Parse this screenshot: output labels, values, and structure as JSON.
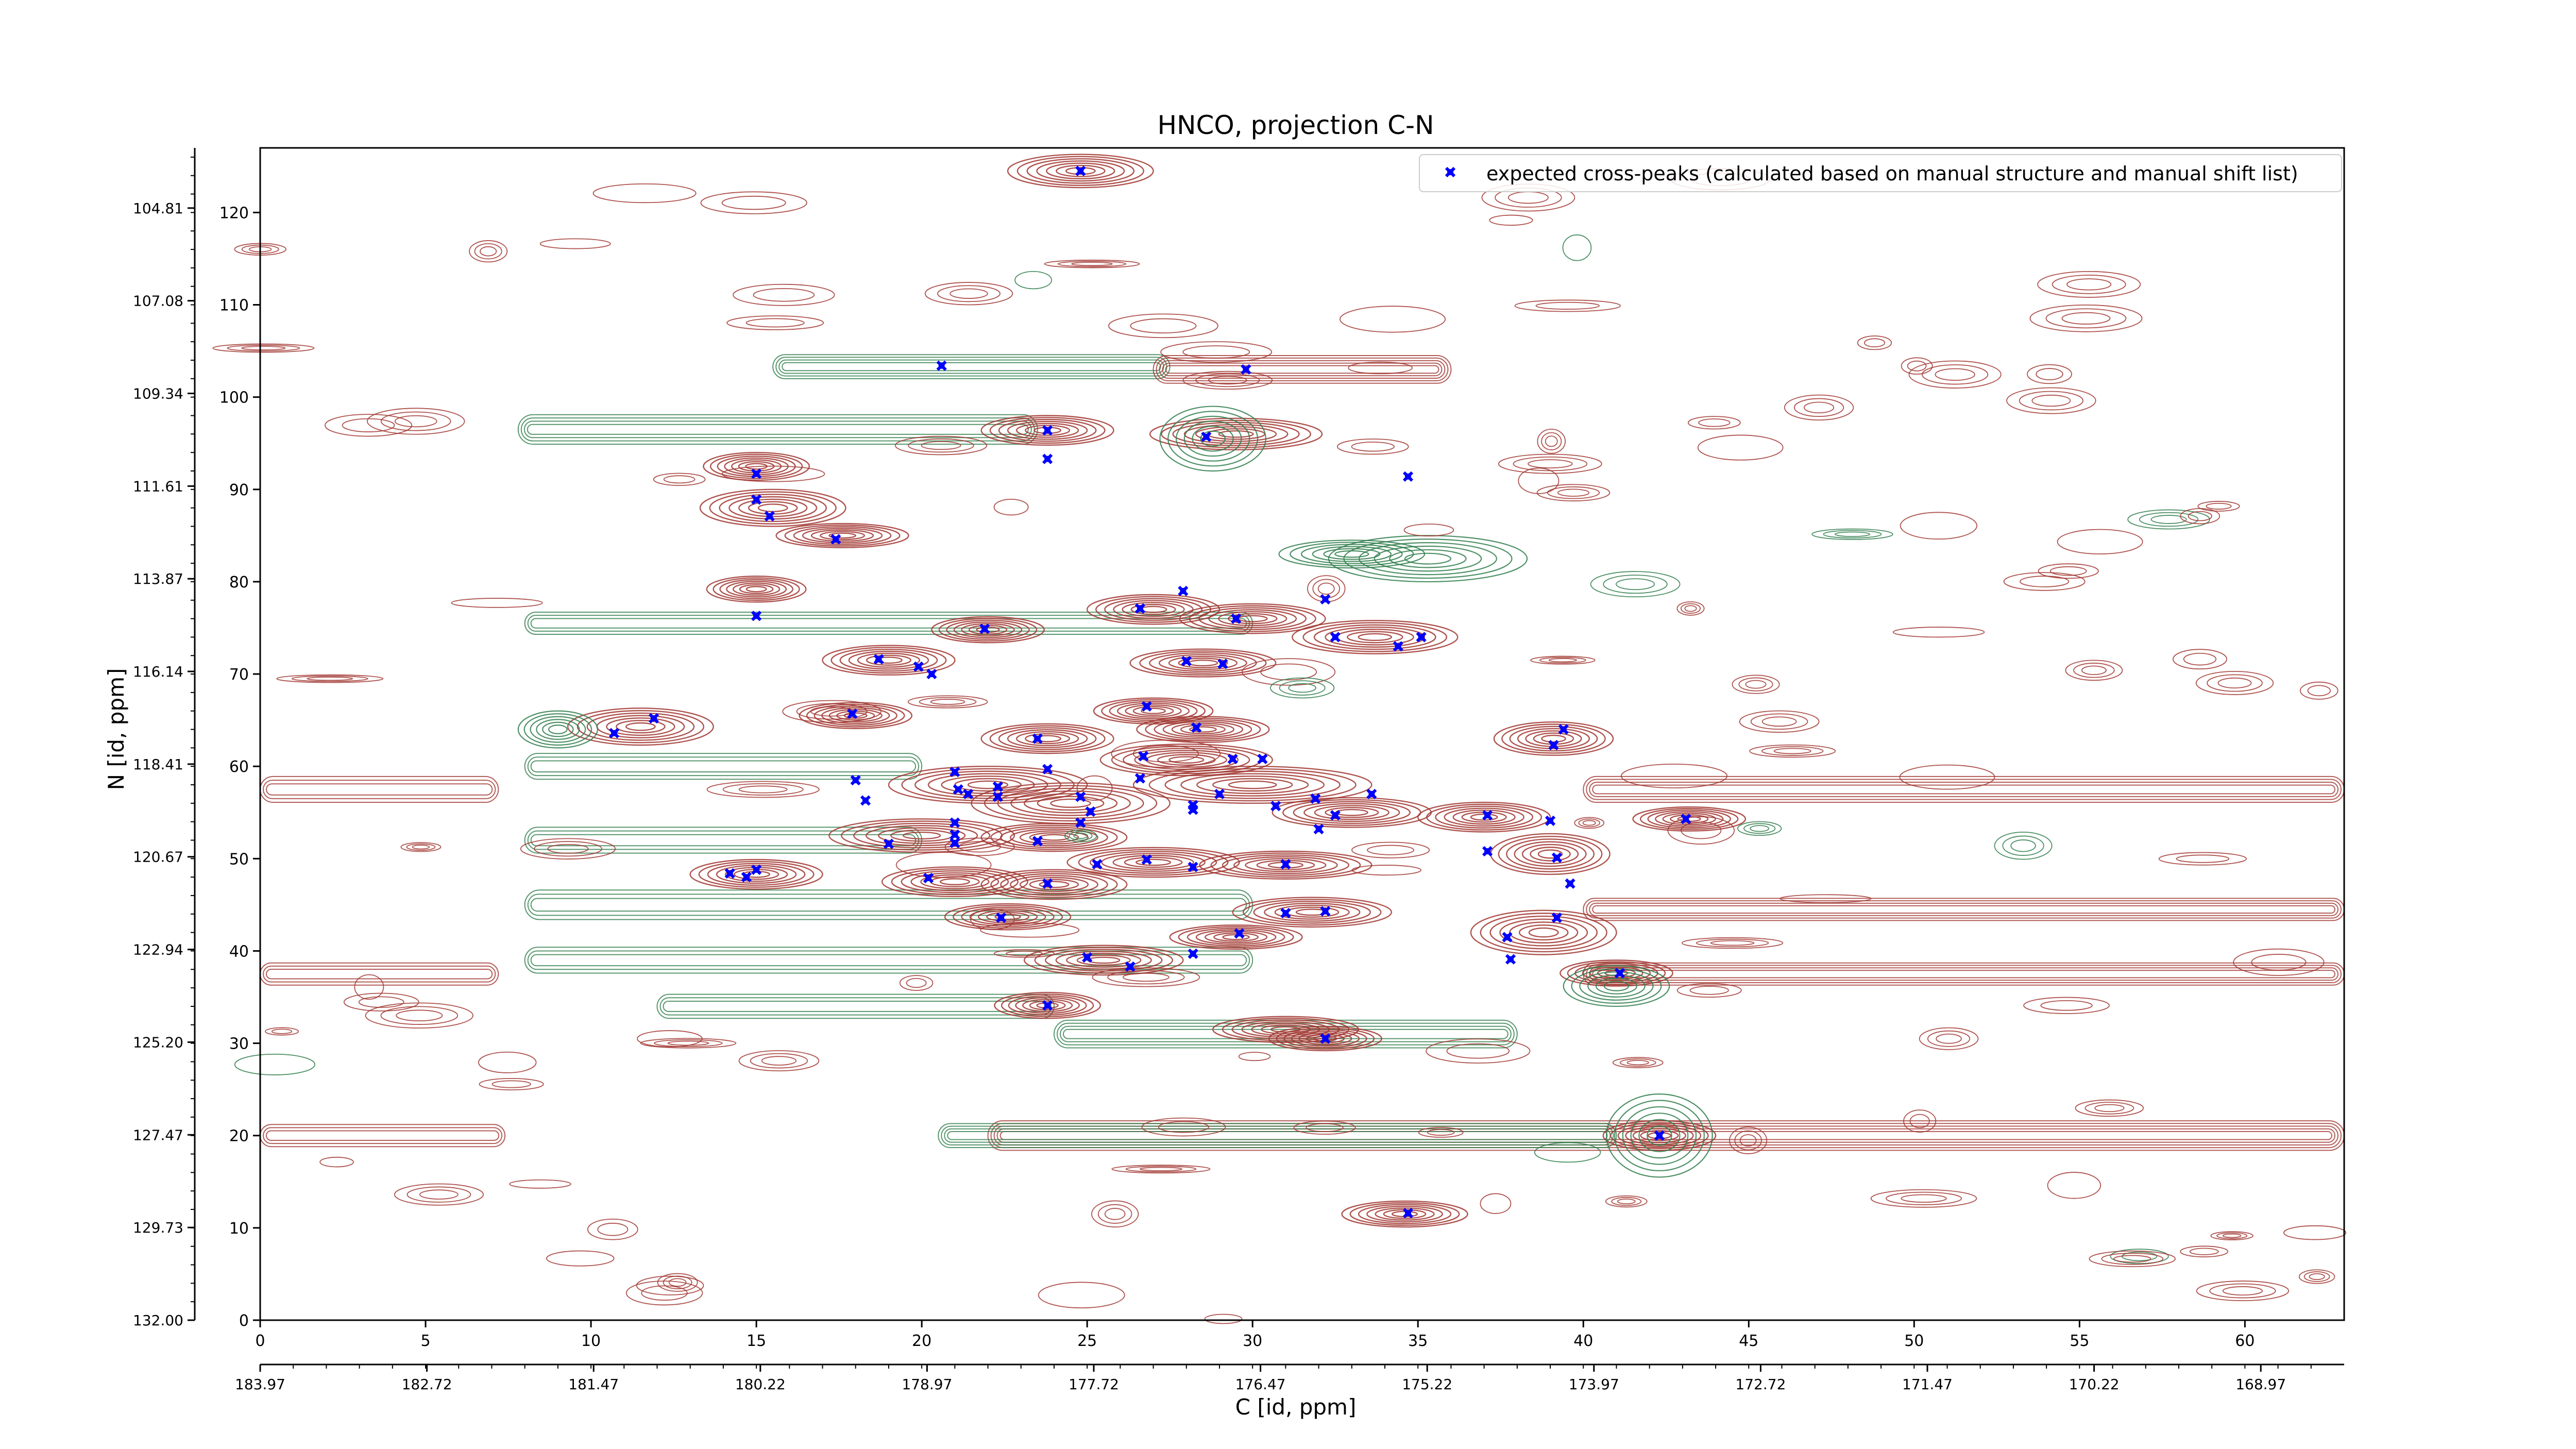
{
  "chart_data": {
    "type": "scatter",
    "title": "HNCO, projection C-N",
    "xlabel": "C [id, ppm]",
    "ylabel": "N [id, ppm]",
    "xlim": [
      0,
      63
    ],
    "ylim": [
      0,
      127
    ],
    "grid": false,
    "legend_position": "top-right",
    "x_ticks": [
      0,
      5,
      10,
      15,
      20,
      25,
      30,
      35,
      40,
      45,
      50,
      55,
      60
    ],
    "y_ticks": [
      0,
      10,
      20,
      30,
      40,
      50,
      60,
      70,
      80,
      90,
      100,
      110,
      120
    ],
    "secondary_x_ticks": [
      {
        "at": 0,
        "label": "183.97"
      },
      {
        "at": 6.28,
        "label": "182.72"
      },
      {
        "at": 12.56,
        "label": "181.47"
      },
      {
        "at": 18.84,
        "label": "180.22"
      },
      {
        "at": 25.12,
        "label": "178.97"
      },
      {
        "at": 31.4,
        "label": "177.72"
      },
      {
        "at": 37.68,
        "label": "176.47"
      },
      {
        "at": 43.96,
        "label": "175.22"
      },
      {
        "at": 50.24,
        "label": "173.97"
      },
      {
        "at": 56.52,
        "label": "172.72"
      },
      {
        "at": 62.8,
        "label": "171.47"
      },
      {
        "at": 69.08,
        "label": "170.22"
      },
      {
        "at": 75.36,
        "label": "168.97"
      }
    ],
    "secondary_y_ticks": [
      {
        "at": 0,
        "label": "132.00"
      },
      {
        "at": 10.04,
        "label": "129.73"
      },
      {
        "at": 20.08,
        "label": "127.47"
      },
      {
        "at": 30.12,
        "label": "125.20"
      },
      {
        "at": 40.16,
        "label": "122.94"
      },
      {
        "at": 50.2,
        "label": "120.67"
      },
      {
        "at": 60.24,
        "label": "118.41"
      },
      {
        "at": 70.28,
        "label": "116.14"
      },
      {
        "at": 80.32,
        "label": "113.87"
      },
      {
        "at": 90.36,
        "label": "111.61"
      },
      {
        "at": 100.4,
        "label": "109.34"
      },
      {
        "at": 110.44,
        "label": "107.08"
      },
      {
        "at": 120.48,
        "label": "104.81"
      }
    ],
    "colors": {
      "peak_marker": "#0000ff",
      "contour_positive": "#a0352f",
      "contour_negative": "#2e7d4a"
    },
    "series": [
      {
        "name": "expected cross-peaks (calculated based on manual structure and manual shift list)",
        "marker": "x",
        "points": [
          [
            24.8,
            124.5
          ],
          [
            20.6,
            103.4
          ],
          [
            29.8,
            103.0
          ],
          [
            23.8,
            96.4
          ],
          [
            28.6,
            95.7
          ],
          [
            23.8,
            93.3
          ],
          [
            15.0,
            91.7
          ],
          [
            15.0,
            88.9
          ],
          [
            15.4,
            87.1
          ],
          [
            17.4,
            84.6
          ],
          [
            34.7,
            91.4
          ],
          [
            27.9,
            79.0
          ],
          [
            26.6,
            77.1
          ],
          [
            32.2,
            78.1
          ],
          [
            29.5,
            76.0
          ],
          [
            15.0,
            76.3
          ],
          [
            21.9,
            74.9
          ],
          [
            32.5,
            74.0
          ],
          [
            35.1,
            74.0
          ],
          [
            34.4,
            73.0
          ],
          [
            18.7,
            71.6
          ],
          [
            28.0,
            71.4
          ],
          [
            29.1,
            71.1
          ],
          [
            19.9,
            70.8
          ],
          [
            20.3,
            70.0
          ],
          [
            26.8,
            66.5
          ],
          [
            17.9,
            65.7
          ],
          [
            11.9,
            65.2
          ],
          [
            10.7,
            63.6
          ],
          [
            28.3,
            64.2
          ],
          [
            23.5,
            63.0
          ],
          [
            39.4,
            64.0
          ],
          [
            39.1,
            62.3
          ],
          [
            26.7,
            61.1
          ],
          [
            29.4,
            60.8
          ],
          [
            30.3,
            60.8
          ],
          [
            23.8,
            59.7
          ],
          [
            21.0,
            59.4
          ],
          [
            18.0,
            58.5
          ],
          [
            26.6,
            58.7
          ],
          [
            21.1,
            57.5
          ],
          [
            22.3,
            57.8
          ],
          [
            21.4,
            57.0
          ],
          [
            22.3,
            56.7
          ],
          [
            29.0,
            57.0
          ],
          [
            33.6,
            57.0
          ],
          [
            24.8,
            56.7
          ],
          [
            18.3,
            56.3
          ],
          [
            31.9,
            56.5
          ],
          [
            28.2,
            55.8
          ],
          [
            30.7,
            55.7
          ],
          [
            28.2,
            55.3
          ],
          [
            25.1,
            55.1
          ],
          [
            32.5,
            54.7
          ],
          [
            37.1,
            54.7
          ],
          [
            43.1,
            54.3
          ],
          [
            24.8,
            53.9
          ],
          [
            21.0,
            53.9
          ],
          [
            39.0,
            54.1
          ],
          [
            32.0,
            53.2
          ],
          [
            21.0,
            52.6
          ],
          [
            19.0,
            51.6
          ],
          [
            23.5,
            51.9
          ],
          [
            21.0,
            51.7
          ],
          [
            37.1,
            50.8
          ],
          [
            39.2,
            50.1
          ],
          [
            26.8,
            49.9
          ],
          [
            25.3,
            49.4
          ],
          [
            31.0,
            49.4
          ],
          [
            28.2,
            49.1
          ],
          [
            15.0,
            48.8
          ],
          [
            14.2,
            48.4
          ],
          [
            14.7,
            48.0
          ],
          [
            20.2,
            47.9
          ],
          [
            23.8,
            47.3
          ],
          [
            39.6,
            47.3
          ],
          [
            31.0,
            44.1
          ],
          [
            32.2,
            44.3
          ],
          [
            22.4,
            43.6
          ],
          [
            39.2,
            43.6
          ],
          [
            29.6,
            41.9
          ],
          [
            37.7,
            41.5
          ],
          [
            28.2,
            39.7
          ],
          [
            25.0,
            39.3
          ],
          [
            26.3,
            38.3
          ],
          [
            37.8,
            39.1
          ],
          [
            41.1,
            37.6
          ],
          [
            23.8,
            34.1
          ],
          [
            32.2,
            30.5
          ],
          [
            42.3,
            20.0
          ],
          [
            34.7,
            11.6
          ]
        ]
      }
    ]
  }
}
